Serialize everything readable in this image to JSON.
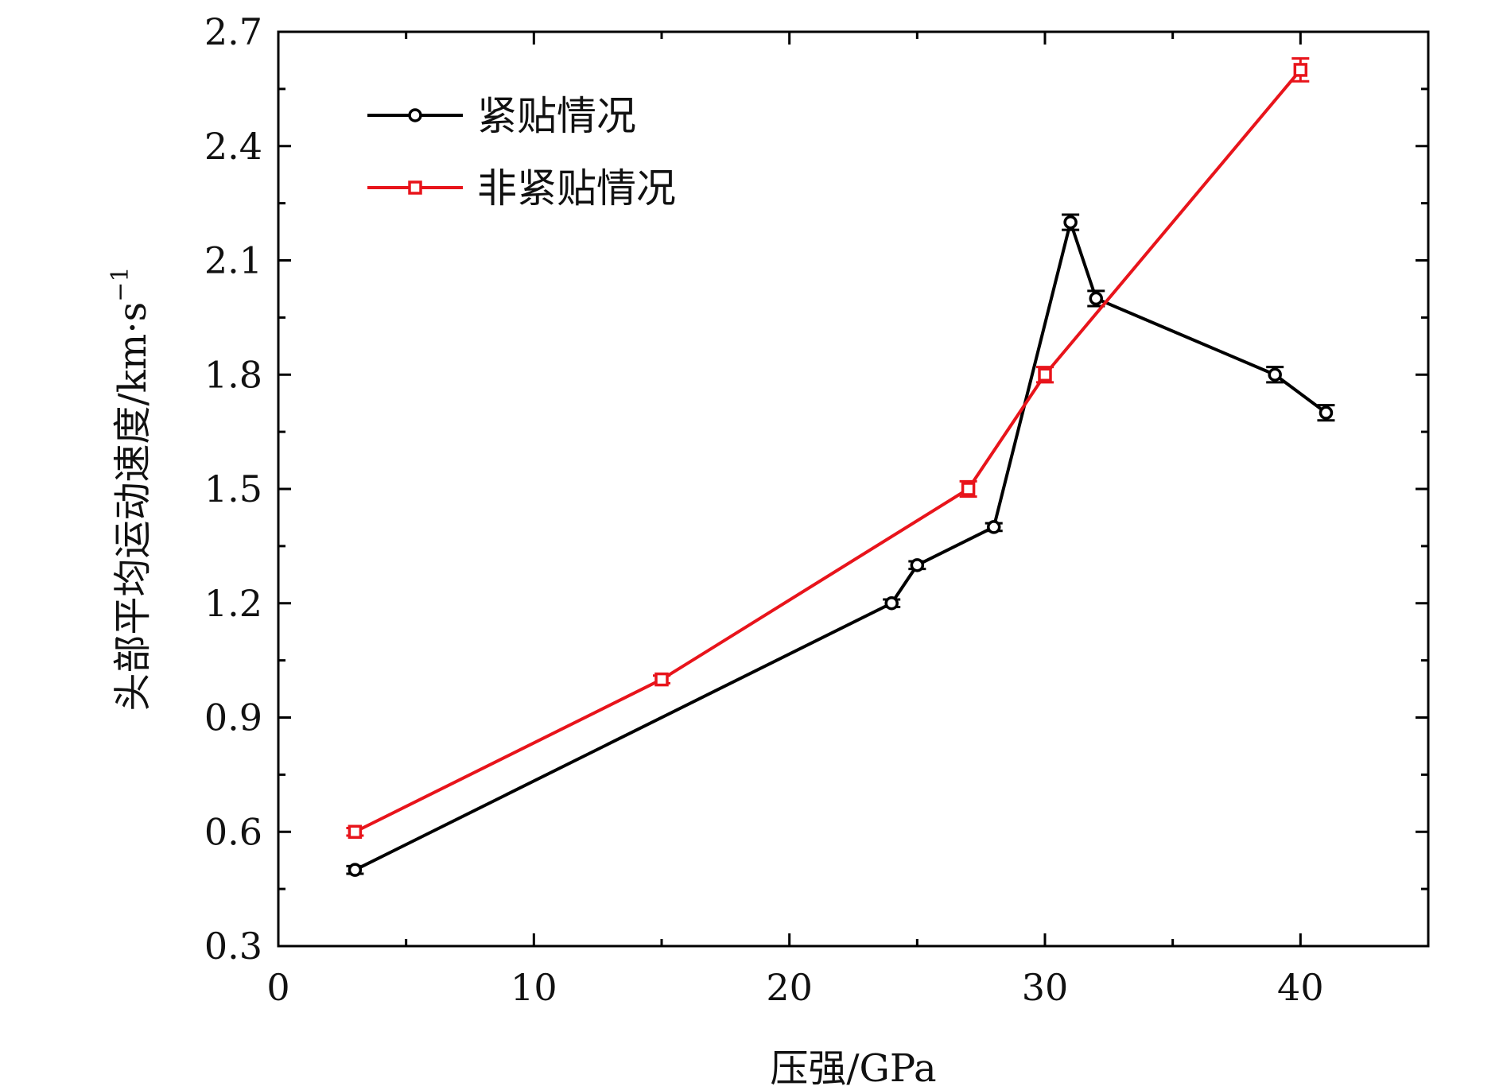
{
  "chart_data": {
    "type": "line",
    "xlabel": "压强/GPa",
    "ylabel": "头部平均运动速度/km·s",
    "ylabel_superscript": "−1",
    "xlim": [
      0,
      45
    ],
    "ylim": [
      0.3,
      2.7
    ],
    "xticks": [
      0,
      10,
      20,
      30,
      40
    ],
    "xtick_labels": [
      "0",
      "10",
      "20",
      "30",
      "40"
    ],
    "xminor": [
      5,
      15,
      25,
      35
    ],
    "yticks": [
      0.3,
      0.6,
      0.9,
      1.2,
      1.5,
      1.8,
      2.1,
      2.4,
      2.7
    ],
    "ytick_labels": [
      "0.3",
      "0.6",
      "0.9",
      "1.2",
      "1.5",
      "1.8",
      "2.1",
      "2.4",
      "2.7"
    ],
    "yminor": [
      0.45,
      0.75,
      1.05,
      1.35,
      1.65,
      1.95,
      2.25,
      2.55
    ],
    "grid": false,
    "legend_position": "top-left",
    "series": [
      {
        "name": "紧贴情况",
        "color": "#000000",
        "marker": "circle",
        "x": [
          3,
          24,
          25,
          28,
          31,
          32,
          39,
          41
        ],
        "y": [
          0.5,
          1.2,
          1.3,
          1.4,
          2.2,
          2.0,
          1.8,
          1.7
        ],
        "err": [
          0.01,
          0.01,
          0.01,
          0.01,
          0.02,
          0.02,
          0.02,
          0.02
        ]
      },
      {
        "name": "非紧贴情况",
        "color": "#e8141b",
        "marker": "square",
        "x": [
          3,
          15,
          27,
          30,
          40
        ],
        "y": [
          0.6,
          1.0,
          1.5,
          1.8,
          2.6
        ],
        "err": [
          0.01,
          0.01,
          0.02,
          0.02,
          0.03
        ]
      }
    ]
  }
}
